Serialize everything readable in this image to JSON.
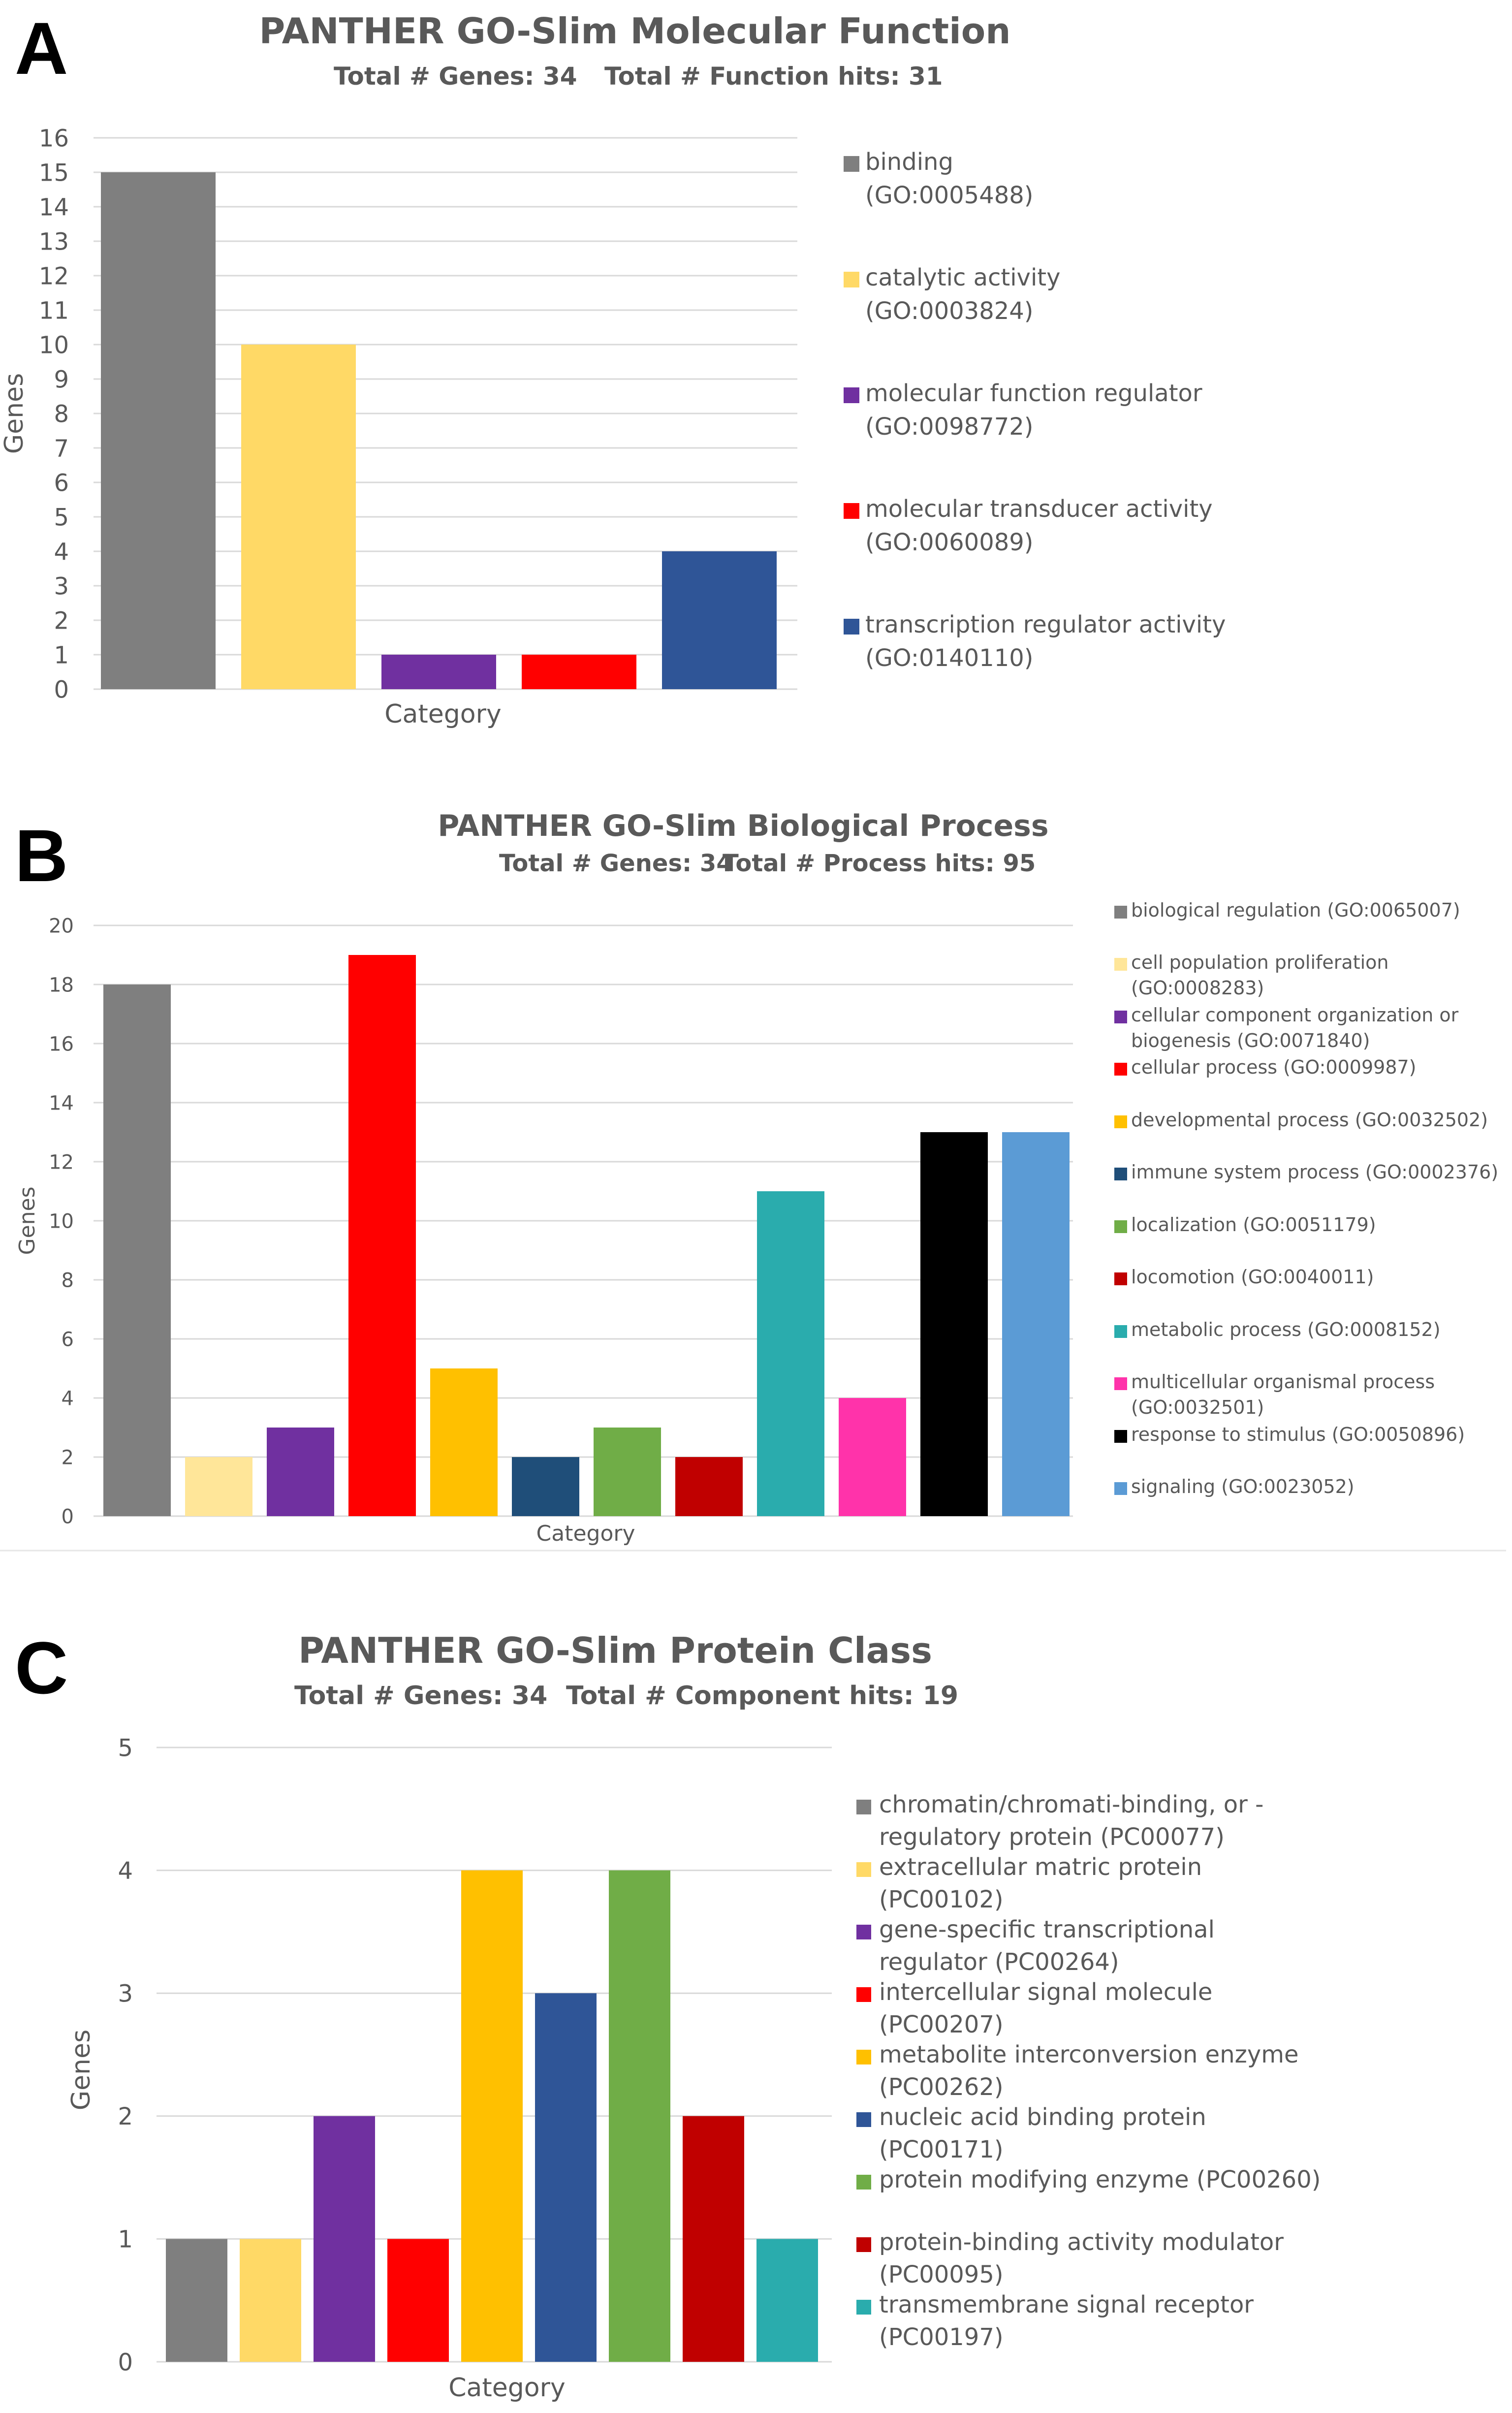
{
  "figure_separator_color": "#e6e6e6",
  "chart_data": [
    {
      "panel": "A",
      "type": "bar",
      "title": "PANTHER GO-Slim Molecular Function",
      "subtitle_parts": [
        "Total # Genes: 34",
        "Total # Function hits: 31"
      ],
      "xlabel": "Category",
      "ylabel": "Genes",
      "ylim": [
        0,
        16
      ],
      "ytick_step": 1,
      "categories": [
        [
          "binding",
          "(GO:0005488)"
        ],
        [
          "catalytic activity",
          "(GO:0003824)"
        ],
        [
          "molecular function regulator",
          "(GO:0098772)"
        ],
        [
          "molecular transducer activity",
          "(GO:0060089)"
        ],
        [
          "transcription regulator activity",
          "(GO:0140110)"
        ]
      ],
      "values": [
        15,
        10,
        1,
        1,
        4
      ],
      "colors": [
        "#7f7f7f",
        "#ffd966",
        "#7030a0",
        "#ff0000",
        "#2f5597"
      ]
    },
    {
      "panel": "B",
      "type": "bar",
      "title": "PANTHER GO-Slim Biological Process",
      "subtitle_parts": [
        "Total # Genes: 34",
        "Total # Process hits: 95"
      ],
      "xlabel": "Category",
      "ylabel": "Genes",
      "ylim": [
        0,
        20
      ],
      "ytick_step": 2,
      "categories": [
        [
          "biological regulation (GO:0065007)"
        ],
        [
          "cell population proliferation",
          "(GO:0008283)"
        ],
        [
          "cellular component organization or",
          "biogenesis (GO:0071840)"
        ],
        [
          "cellular process (GO:0009987)"
        ],
        [
          "developmental process (GO:0032502)"
        ],
        [
          "immune system process (GO:0002376)"
        ],
        [
          "localization (GO:0051179)"
        ],
        [
          "locomotion (GO:0040011)"
        ],
        [
          "metabolic process (GO:0008152)"
        ],
        [
          "multicellular organismal process",
          "(GO:0032501)"
        ],
        [
          "response to stimulus (GO:0050896)"
        ],
        [
          "signaling (GO:0023052)"
        ]
      ],
      "values": [
        18,
        2,
        3,
        19,
        5,
        2,
        3,
        2,
        11,
        4,
        13,
        13
      ],
      "colors": [
        "#7f7f7f",
        "#ffe699",
        "#7030a0",
        "#ff0000",
        "#ffc000",
        "#1f4e79",
        "#70ad47",
        "#c00000",
        "#2aacad",
        "#ff33aa",
        "#000000",
        "#5b9bd5"
      ]
    },
    {
      "panel": "C",
      "type": "bar",
      "title": "PANTHER GO-Slim Protein Class",
      "subtitle_parts": [
        "Total # Genes: 34",
        "Total # Component hits: 19"
      ],
      "xlabel": "Category",
      "ylabel": "Genes",
      "ylim": [
        0,
        5
      ],
      "ytick_step": 1,
      "categories": [
        [
          "chromatin/chromati-binding, or -",
          "regulatory protein (PC00077)"
        ],
        [
          "extracellular matric protein",
          "(PC00102)"
        ],
        [
          "gene-specific transcriptional",
          "regulator (PC00264)"
        ],
        [
          "intercellular signal molecule",
          "(PC00207)"
        ],
        [
          "metabolite interconversion enzyme",
          "(PC00262)"
        ],
        [
          "nucleic acid binding protein",
          "(PC00171)"
        ],
        [
          "protein modifying enzyme (PC00260)"
        ],
        [
          "protein-binding activity modulator",
          "(PC00095)"
        ],
        [
          "transmembrane signal receptor",
          "(PC00197)"
        ]
      ],
      "values": [
        1,
        1,
        2,
        1,
        4,
        3,
        4,
        2,
        1
      ],
      "colors": [
        "#7f7f7f",
        "#ffd966",
        "#7030a0",
        "#ff0000",
        "#ffc000",
        "#2f5597",
        "#70ad47",
        "#c00000",
        "#2aacad"
      ]
    }
  ]
}
